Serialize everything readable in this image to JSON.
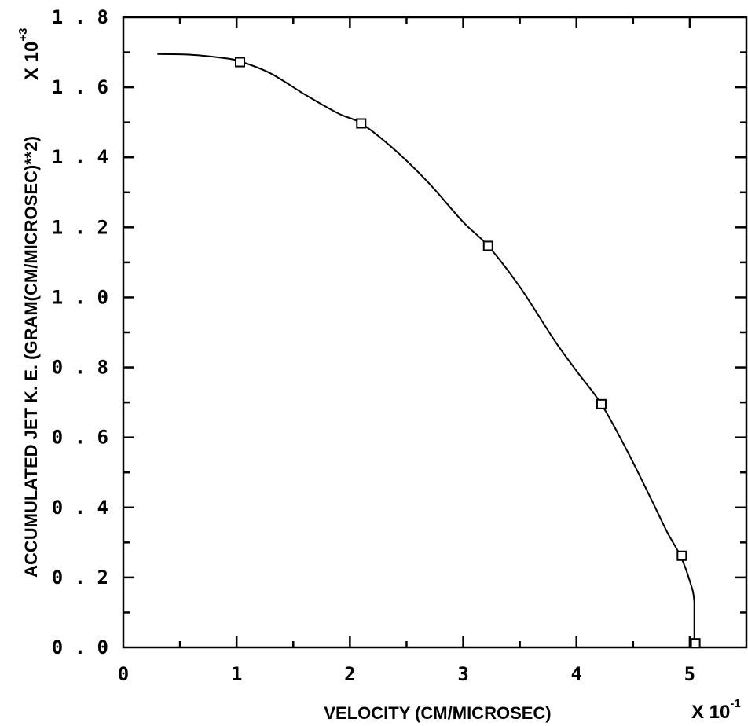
{
  "chart_data": {
    "type": "line",
    "title": "",
    "xlabel": "VELOCITY (CM/MICROSEC)",
    "ylabel": "ACCUMULATED JET K. E. (GRAM(CM/MICROSEC)**2)",
    "x_multiplier": {
      "base": "X 10",
      "exponent": "-1"
    },
    "y_multiplier": {
      "base": "X 10",
      "exponent": "+3"
    },
    "xlim": [
      0,
      5.5
    ],
    "ylim": [
      0.0,
      1.8
    ],
    "x_ticks": [
      "0",
      "1",
      "2",
      "3",
      "4",
      "5"
    ],
    "y_ticks": [
      "0.0",
      "0.2",
      "0.4",
      "0.6",
      "0.8",
      "1.0",
      "1.2",
      "1.4",
      "1.6",
      "1.8"
    ],
    "grid": false,
    "series": [
      {
        "style": "curve",
        "x": [
          0.3,
          0.6,
          0.9,
          1.05,
          1.3,
          1.6,
          1.9,
          2.1,
          2.4,
          2.7,
          3.0,
          3.22,
          3.5,
          3.8,
          4.0,
          4.22,
          4.45,
          4.65,
          4.8,
          4.92,
          5.0,
          5.04,
          5.04
        ],
        "y": [
          1.695,
          1.693,
          1.683,
          1.672,
          1.64,
          1.58,
          1.525,
          1.497,
          1.42,
          1.325,
          1.215,
          1.147,
          1.03,
          0.88,
          0.79,
          0.695,
          0.56,
          0.43,
          0.33,
          0.26,
          0.19,
          0.13,
          0.0
        ]
      },
      {
        "style": "markers",
        "marker": "square",
        "x": [
          1.03,
          2.1,
          3.22,
          4.22,
          4.93,
          5.05
        ],
        "y": [
          1.672,
          1.497,
          1.147,
          0.695,
          0.262,
          0.012
        ]
      }
    ]
  }
}
